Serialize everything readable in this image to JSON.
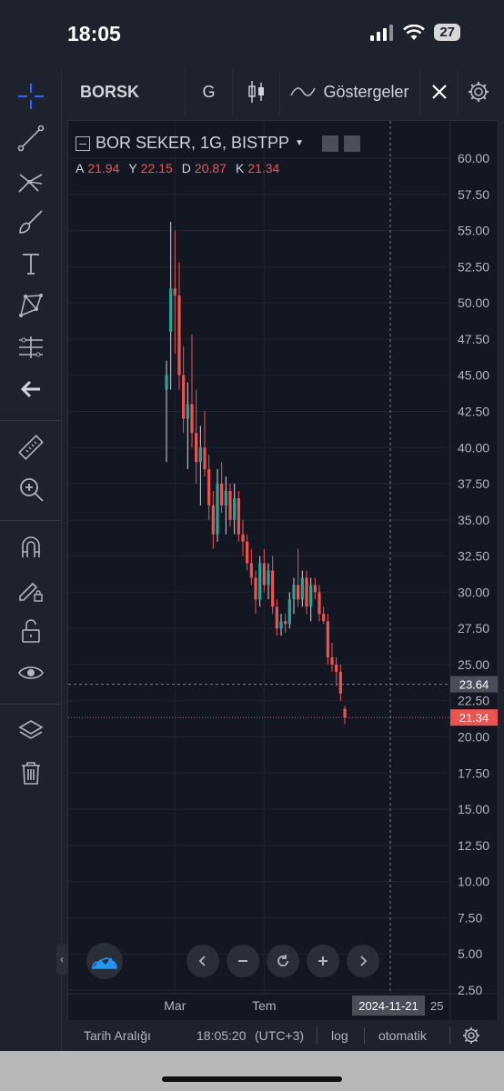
{
  "status_bar": {
    "time": "18:05",
    "battery": "27"
  },
  "toolbar": {
    "symbol": "BORSK",
    "interval": "G",
    "indicators_label": "Göstergeler"
  },
  "legend": {
    "title": "BOR SEKER, 1G, BISTPP",
    "open_label": "A",
    "open_value": "21.94",
    "high_label": "Y",
    "high_value": "22.15",
    "low_label": "D",
    "low_value": "20.87",
    "close_label": "K",
    "close_value": "21.34"
  },
  "price_badges": {
    "last": "21.34",
    "crosshair": "23.64"
  },
  "bottom_bar": {
    "date_range": "Tarih Aralığı",
    "clock": "18:05:20",
    "timezone": "(UTC+3)",
    "log_label": "log",
    "auto_label": "otomatik"
  },
  "colors": {
    "up": "#26a69a",
    "down": "#ef5350",
    "up_wick": "#d1d4dc",
    "accent": "#2962ff"
  },
  "chart_data": {
    "type": "candlestick",
    "title": "BOR SEKER, 1G, BISTPP",
    "y_ticks": [
      "60.00",
      "57.50",
      "55.00",
      "52.50",
      "50.00",
      "47.50",
      "45.00",
      "42.50",
      "40.00",
      "37.50",
      "35.00",
      "32.50",
      "30.00",
      "27.50",
      "25.00",
      "22.50",
      "20.00",
      "17.50",
      "15.00",
      "12.50",
      "10.00",
      "7.50",
      "5.00",
      "2.50"
    ],
    "ylim": [
      2.5,
      60
    ],
    "x_ticks": [
      {
        "label": "Mar"
      },
      {
        "label": "Tem"
      }
    ],
    "crosshair_date": "2024-11-21",
    "crosshair_date_suffix": "25",
    "last_price": 21.34,
    "crosshair_price": 23.64,
    "grid": true,
    "candles": [
      {
        "o": 44.0,
        "h": 46.0,
        "l": 39.0,
        "c": 45.0
      },
      {
        "o": 48.0,
        "h": 55.6,
        "l": 44.0,
        "c": 51.0
      },
      {
        "o": 51.0,
        "h": 55.0,
        "l": 46.5,
        "c": 50.5
      },
      {
        "o": 50.5,
        "h": 52.8,
        "l": 44.0,
        "c": 45.0
      },
      {
        "o": 45.0,
        "h": 47.0,
        "l": 41.0,
        "c": 42.0
      },
      {
        "o": 42.0,
        "h": 44.5,
        "l": 38.5,
        "c": 43.0
      },
      {
        "o": 43.0,
        "h": 47.8,
        "l": 40.0,
        "c": 41.0
      },
      {
        "o": 41.0,
        "h": 44.0,
        "l": 37.5,
        "c": 39.0
      },
      {
        "o": 39.0,
        "h": 41.5,
        "l": 36.0,
        "c": 40.0
      },
      {
        "o": 40.0,
        "h": 42.5,
        "l": 38.0,
        "c": 38.5
      },
      {
        "o": 38.5,
        "h": 39.5,
        "l": 35.0,
        "c": 36.0
      },
      {
        "o": 36.0,
        "h": 37.0,
        "l": 33.0,
        "c": 34.0
      },
      {
        "o": 34.0,
        "h": 38.5,
        "l": 33.5,
        "c": 37.5
      },
      {
        "o": 37.5,
        "h": 39.0,
        "l": 35.5,
        "c": 36.0
      },
      {
        "o": 36.0,
        "h": 38.0,
        "l": 34.0,
        "c": 37.0
      },
      {
        "o": 37.0,
        "h": 37.5,
        "l": 34.5,
        "c": 35.0
      },
      {
        "o": 35.0,
        "h": 37.5,
        "l": 34.0,
        "c": 36.5
      },
      {
        "o": 36.5,
        "h": 37.0,
        "l": 33.5,
        "c": 34.0
      },
      {
        "o": 34.0,
        "h": 35.0,
        "l": 32.5,
        "c": 33.5
      },
      {
        "o": 33.5,
        "h": 34.0,
        "l": 31.5,
        "c": 32.0
      },
      {
        "o": 32.0,
        "h": 33.0,
        "l": 30.5,
        "c": 31.0
      },
      {
        "o": 31.0,
        "h": 31.5,
        "l": 28.5,
        "c": 29.5
      },
      {
        "o": 29.5,
        "h": 32.5,
        "l": 29.0,
        "c": 32.0
      },
      {
        "o": 32.0,
        "h": 33.0,
        "l": 30.0,
        "c": 30.5
      },
      {
        "o": 30.5,
        "h": 32.0,
        "l": 29.5,
        "c": 31.5
      },
      {
        "o": 31.5,
        "h": 32.5,
        "l": 28.5,
        "c": 29.0
      },
      {
        "o": 29.0,
        "h": 29.5,
        "l": 27.0,
        "c": 27.5
      },
      {
        "o": 27.5,
        "h": 28.5,
        "l": 27.0,
        "c": 28.0
      },
      {
        "o": 28.0,
        "h": 28.5,
        "l": 27.2,
        "c": 27.8
      },
      {
        "o": 27.8,
        "h": 30.0,
        "l": 27.5,
        "c": 29.5
      },
      {
        "o": 29.5,
        "h": 31.0,
        "l": 28.5,
        "c": 30.5
      },
      {
        "o": 30.5,
        "h": 33.0,
        "l": 29.0,
        "c": 29.5
      },
      {
        "o": 29.5,
        "h": 31.5,
        "l": 29.0,
        "c": 31.0
      },
      {
        "o": 31.0,
        "h": 31.5,
        "l": 28.5,
        "c": 29.0
      },
      {
        "o": 29.0,
        "h": 31.0,
        "l": 28.0,
        "c": 30.5
      },
      {
        "o": 30.5,
        "h": 31.0,
        "l": 29.5,
        "c": 30.0
      },
      {
        "o": 30.0,
        "h": 30.5,
        "l": 28.0,
        "c": 28.5
      },
      {
        "o": 28.5,
        "h": 29.0,
        "l": 27.8,
        "c": 28.0
      },
      {
        "o": 28.0,
        "h": 28.5,
        "l": 25.0,
        "c": 25.5
      },
      {
        "o": 25.5,
        "h": 26.5,
        "l": 24.5,
        "c": 25.0
      },
      {
        "o": 25.0,
        "h": 25.5,
        "l": 23.5,
        "c": 24.5
      },
      {
        "o": 24.5,
        "h": 25.0,
        "l": 22.5,
        "c": 23.0
      },
      {
        "o": 21.94,
        "h": 22.15,
        "l": 20.87,
        "c": 21.34
      }
    ]
  }
}
